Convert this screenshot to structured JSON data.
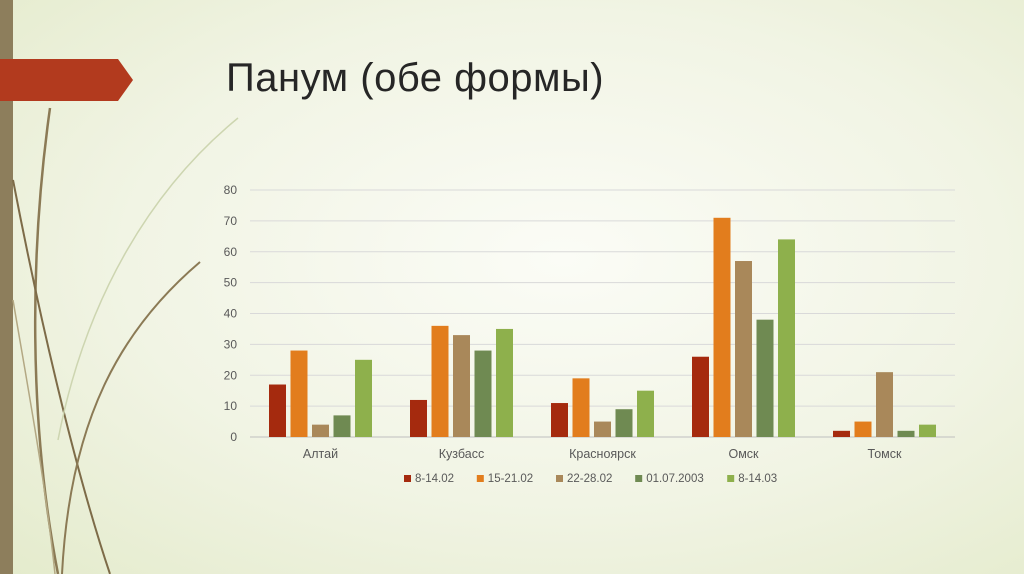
{
  "slide": {
    "title": "Панум (обе формы)",
    "accent_color": "#b23a1e",
    "sidebar_color": "#8d7e5c"
  },
  "chart_data": {
    "type": "bar",
    "title": "",
    "xlabel": "",
    "ylabel": "",
    "ylim": [
      0,
      80
    ],
    "yticks": [
      0,
      10,
      20,
      30,
      40,
      50,
      60,
      70,
      80
    ],
    "grid": true,
    "legend_position": "bottom",
    "categories": [
      "Алтай",
      "Кузбасс",
      "Красноярск",
      "Омск",
      "Томск"
    ],
    "series": [
      {
        "name": "8-14.02",
        "color": "#a52a0e",
        "values": [
          17,
          12,
          11,
          26,
          2
        ]
      },
      {
        "name": "15-21.02",
        "color": "#e27d1d",
        "values": [
          28,
          36,
          19,
          71,
          5
        ]
      },
      {
        "name": "22-28.02",
        "color": "#a9885a",
        "values": [
          4,
          33,
          5,
          57,
          21
        ]
      },
      {
        "name": "01.07.2003",
        "color": "#6f8a52",
        "values": [
          7,
          28,
          9,
          38,
          2
        ]
      },
      {
        "name": "8-14.03",
        "color": "#8eb04c",
        "values": [
          25,
          35,
          15,
          64,
          4
        ]
      }
    ]
  }
}
